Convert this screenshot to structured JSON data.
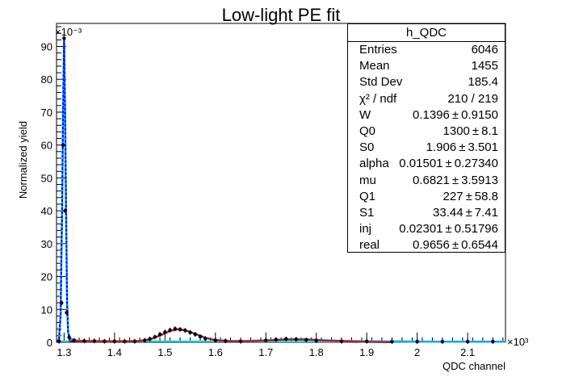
{
  "chart_data": {
    "type": "scatter",
    "title": "Low-light PE fit",
    "xlabel": "QDC channel",
    "ylabel": "Normalized yield",
    "x_multiplier": "×10³",
    "y_multiplier": "×10⁻³",
    "xlim": [
      1.285,
      2.175
    ],
    "ylim": [
      0,
      97
    ],
    "x_ticks": [
      1.3,
      1.4,
      1.5,
      1.6,
      1.7,
      1.8,
      1.9,
      2,
      2.1
    ],
    "x_tick_labels": [
      "1.3",
      "1.4",
      "1.5",
      "1.6",
      "1.7",
      "1.8",
      "1.9",
      "2",
      "2.1"
    ],
    "y_ticks": [
      0,
      10,
      20,
      30,
      40,
      50,
      60,
      70,
      80,
      90
    ],
    "y_tick_labels": [
      "0",
      "10",
      "20",
      "30",
      "40",
      "50",
      "60",
      "70",
      "80",
      "90"
    ],
    "grid": false,
    "colors": {
      "data": "#000000",
      "total_fit": "#00aaff",
      "pedestal_fit": "#0000ff",
      "pe_fit": "#dd0000",
      "background_fit": "#00e5e5"
    },
    "series": [
      {
        "kind": "data",
        "x": [
          1.29,
          1.295,
          1.298,
          1.3,
          1.302,
          1.305,
          1.31,
          1.32,
          1.34,
          1.36,
          1.38,
          1.4,
          1.42,
          1.44,
          1.46,
          1.47,
          1.48,
          1.49,
          1.5,
          1.51,
          1.52,
          1.53,
          1.54,
          1.55,
          1.56,
          1.57,
          1.58,
          1.6,
          1.62,
          1.65,
          1.7,
          1.72,
          1.74,
          1.76,
          1.78,
          1.8,
          1.85,
          1.9,
          1.95,
          2.0,
          2.05,
          2.1,
          2.15
        ],
        "y": [
          0.3,
          12,
          60,
          92.5,
          40,
          9,
          1.5,
          0.6,
          0.4,
          0.4,
          0.3,
          0.3,
          0.3,
          0.3,
          0.6,
          1.0,
          1.6,
          2.4,
          3.1,
          3.7,
          4.1,
          3.9,
          3.6,
          3.0,
          2.4,
          1.7,
          1.1,
          0.6,
          0.4,
          0.3,
          0.6,
          0.8,
          1.0,
          0.9,
          0.7,
          0.5,
          0.3,
          0.3,
          0.2,
          0.2,
          0.2,
          0.2,
          0.2
        ]
      },
      {
        "kind": "fit-total",
        "x": [
          1.285,
          1.29,
          1.293,
          1.296,
          1.298,
          1.3,
          1.302,
          1.304,
          1.306,
          1.308,
          1.312,
          1.32,
          1.34,
          1.38,
          1.42,
          1.45,
          1.47,
          1.49,
          1.51,
          1.525,
          1.54,
          1.56,
          1.58,
          1.6,
          1.63,
          1.66,
          1.7,
          1.74,
          1.78,
          1.82,
          1.86,
          1.9,
          2.0,
          2.1,
          2.175
        ],
        "y": [
          0,
          1,
          8,
          40,
          70,
          92,
          70,
          38,
          12,
          3,
          1.2,
          0.6,
          0.4,
          0.3,
          0.3,
          0.4,
          0.9,
          2.1,
          3.5,
          4.0,
          3.7,
          2.6,
          1.4,
          0.7,
          0.4,
          0.4,
          0.6,
          0.9,
          0.9,
          0.6,
          0.4,
          0.3,
          0.2,
          0.2,
          0.2
        ]
      },
      {
        "kind": "fit-pedestal",
        "x": [
          1.285,
          1.29,
          1.293,
          1.296,
          1.298,
          1.3,
          1.302,
          1.304,
          1.306,
          1.308,
          1.312,
          1.32
        ],
        "y": [
          0,
          1,
          8,
          40,
          70,
          92,
          70,
          38,
          12,
          3,
          0.5,
          0
        ]
      },
      {
        "kind": "fit-pe",
        "x": [
          1.31,
          1.35,
          1.4,
          1.44,
          1.47,
          1.49,
          1.51,
          1.525,
          1.54,
          1.56,
          1.58,
          1.6,
          1.63,
          1.66,
          1.7,
          1.74,
          1.78,
          1.82,
          1.86,
          1.9,
          1.95
        ],
        "y": [
          0.3,
          0.4,
          0.3,
          0.3,
          0.8,
          2.0,
          3.4,
          3.9,
          3.6,
          2.5,
          1.3,
          0.6,
          0.3,
          0.3,
          0.5,
          0.8,
          0.8,
          0.5,
          0.3,
          0.1,
          0
        ]
      },
      {
        "kind": "fit-background",
        "x": [
          1.285,
          1.31,
          1.5,
          1.8,
          2.175
        ],
        "y": [
          0.3,
          0.3,
          0.3,
          0.25,
          0.2
        ]
      }
    ]
  },
  "stats": {
    "title": "h_QDC",
    "rows": [
      {
        "key": "Entries",
        "value": "6046"
      },
      {
        "key": "Mean",
        "value": "1455"
      },
      {
        "key": "Std Dev",
        "value": "185.4"
      },
      {
        "key": "χ² / ndf",
        "value": "210 / 219"
      },
      {
        "key": "W",
        "value": "0.1396",
        "error": "0.9150"
      },
      {
        "key": "Q0",
        "value": "1300",
        "error": "8.1"
      },
      {
        "key": "S0",
        "value": "1.906",
        "error": "3.501"
      },
      {
        "key": "alpha",
        "value": "0.01501",
        "error": "0.27340"
      },
      {
        "key": "mu",
        "value": "0.6821",
        "error": "3.5913"
      },
      {
        "key": "Q1",
        "value": "227",
        "error": "58.8"
      },
      {
        "key": "S1",
        "value": "33.44",
        "error": "7.41"
      },
      {
        "key": "inj",
        "value": "0.02301",
        "error": "0.51796"
      },
      {
        "key": "real",
        "value": "0.9656",
        "error": "0.6544"
      }
    ]
  },
  "pm_symbol": "±"
}
